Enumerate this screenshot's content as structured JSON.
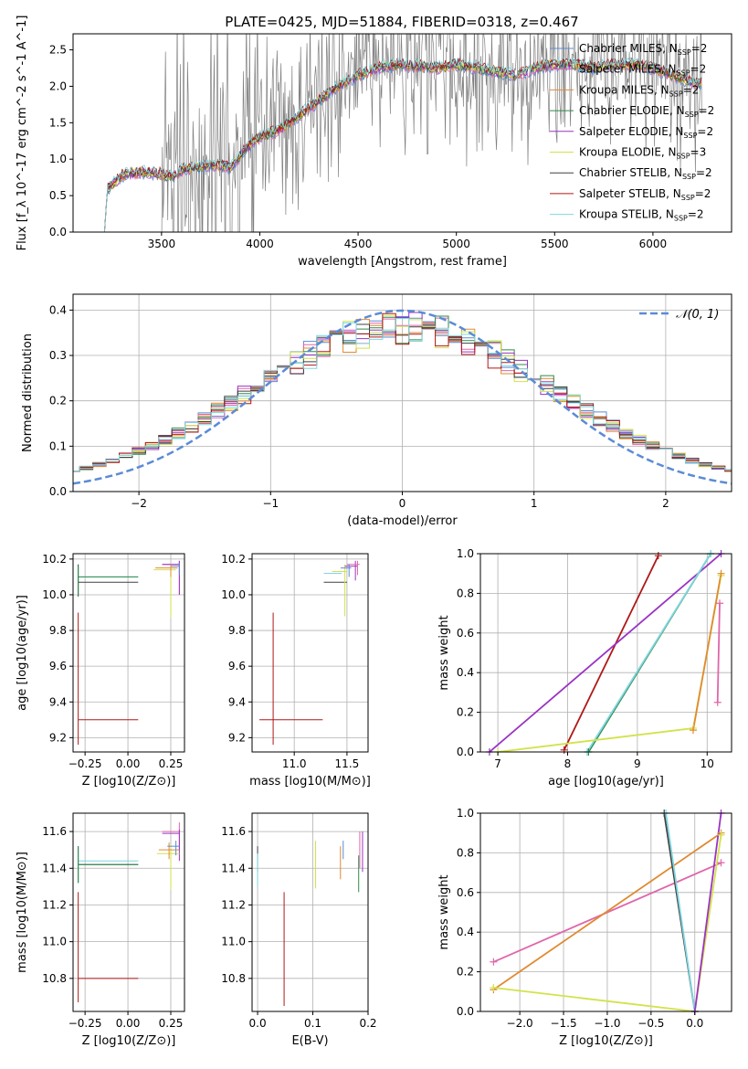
{
  "figure": {
    "title": "PLATE=0425, MJD=51884, FIBERID=0318, z=0.467"
  },
  "colors": {
    "chabrier_miles": "#5b8bd6",
    "salpeter_miles": "#e066aa",
    "kroupa_miles": "#e08a30",
    "chabrier_elodie": "#2f8a4a",
    "salpeter_elodie": "#9a33c4",
    "kroupa_elodie": "#d2e24a",
    "chabrier_stelib": "#404040",
    "salpeter_stelib": "#b01818",
    "kroupa_stelib": "#7fd6e0",
    "data_gray": "#808080",
    "normal_curve": "#5b8bd6",
    "grid": "#b0b0b0"
  },
  "chart_data": [
    {
      "id": "spectrum",
      "type": "line",
      "title": "PLATE=0425, MJD=51884, FIBERID=0318, z=0.467",
      "xlabel": "wavelength [Angstrom, rest frame]",
      "ylabel": "Flux [f_λ 10^-17 erg cm^-2 s^-1 A^-1]",
      "xlim": [
        3050,
        6400
      ],
      "ylim": [
        0,
        2.72
      ],
      "grid": false,
      "legend_position": "top-right",
      "xticks": [
        3500,
        4000,
        4500,
        5000,
        5500,
        6000
      ],
      "yticks": [
        0.0,
        0.5,
        1.0,
        1.5,
        2.0,
        2.5
      ],
      "legend": [
        {
          "label": "Chabrier MILES, N_SSP=2",
          "color_key": "chabrier_miles"
        },
        {
          "label": "Salpeter MILES, N_SSP=2",
          "color_key": "salpeter_miles"
        },
        {
          "label": "Kroupa MILES, N_SSP=2",
          "color_key": "kroupa_miles"
        },
        {
          "label": "Chabrier ELODIE, N_SSP=2",
          "color_key": "chabrier_elodie"
        },
        {
          "label": "Salpeter ELODIE, N_SSP=2",
          "color_key": "salpeter_elodie"
        },
        {
          "label": "Kroupa ELODIE, N_SSP=3",
          "color_key": "kroupa_elodie"
        },
        {
          "label": "Chabrier STELIB, N_SSP=2",
          "color_key": "chabrier_stelib"
        },
        {
          "label": "Salpeter STELIB, N_SSP=2",
          "color_key": "salpeter_stelib"
        },
        {
          "label": "Kroupa STELIB, N_SSP=2",
          "color_key": "kroupa_stelib"
        }
      ],
      "continuum": {
        "x": [
          3210,
          3225,
          3300,
          3400,
          3500,
          3550,
          3600,
          3700,
          3800,
          3850,
          3900,
          3950,
          4000,
          4100,
          4200,
          4300,
          4400,
          4500,
          4600,
          4700,
          4800,
          4900,
          5000,
          5100,
          5200,
          5300,
          5400,
          5500,
          5600,
          5700,
          5800,
          5900,
          6000,
          6100,
          6200
        ],
        "y": [
          0.0,
          0.6,
          0.78,
          0.82,
          0.8,
          0.75,
          0.85,
          0.9,
          0.92,
          0.88,
          1.05,
          1.2,
          1.3,
          1.4,
          1.6,
          1.8,
          2.0,
          2.15,
          2.25,
          2.3,
          2.28,
          2.25,
          2.3,
          2.25,
          2.2,
          2.15,
          2.25,
          2.3,
          2.3,
          2.25,
          2.3,
          2.3,
          2.25,
          2.15,
          2.05
        ]
      },
      "data_xrange": [
        3500,
        6250
      ]
    },
    {
      "id": "residuals",
      "type": "bar",
      "xlabel": "(data-model)/error",
      "ylabel": "Normed distribution",
      "xlim": [
        -2.5,
        2.5
      ],
      "ylim": [
        0,
        0.435
      ],
      "grid": true,
      "legend_position": "top-right",
      "xticks": [
        -2,
        -1,
        0,
        1,
        2
      ],
      "yticks": [
        0.0,
        0.1,
        0.2,
        0.3,
        0.4
      ],
      "legend": [
        {
          "label": "𝒩(0, 1)",
          "style": "dashed",
          "color_key": "normal_curve"
        }
      ],
      "bin_width": 0.1,
      "series_colors": [
        "chabrier_miles",
        "salpeter_miles",
        "kroupa_miles",
        "chabrier_elodie",
        "salpeter_elodie",
        "kroupa_elodie",
        "chabrier_stelib",
        "salpeter_stelib",
        "kroupa_stelib"
      ],
      "normal": {
        "mean": 0,
        "sigma": 1
      }
    },
    {
      "id": "age_vs_Z",
      "type": "scatter",
      "xlabel": "Z [log10(Z/Z⊙)]",
      "ylabel": "age [log10(age/yr)]",
      "xlim": [
        -0.32,
        0.33
      ],
      "ylim": [
        9.12,
        10.23
      ],
      "grid": true,
      "xticks": [
        -0.25,
        0.0,
        0.25
      ],
      "xtick_labels": [
        "−0.25",
        "0.00",
        "0.25"
      ],
      "yticks": [
        9.2,
        9.4,
        9.6,
        9.8,
        10.0,
        10.2
      ],
      "points": [
        {
          "color_key": "salpeter_stelib",
          "x": -0.29,
          "xerr": [
            0,
            0.35
          ],
          "y": 9.3,
          "yerr": [
            0.14,
            0.6
          ]
        },
        {
          "color_key": "kroupa_stelib",
          "x": -0.29,
          "xerr": [
            0,
            0.35
          ],
          "y": 10.1,
          "yerr": [
            0.1,
            0.07
          ]
        },
        {
          "color_key": "chabrier_stelib",
          "x": -0.29,
          "xerr": [
            0,
            0.35
          ],
          "y": 10.07,
          "yerr": [
            0.08,
            0.1
          ]
        },
        {
          "color_key": "chabrier_elodie",
          "x": -0.29,
          "xerr": [
            0,
            0.35
          ],
          "y": 10.1,
          "yerr": [
            0.1,
            0.06
          ]
        },
        {
          "color_key": "salpeter_miles",
          "x": 0.3,
          "xerr": [
            0.1,
            0.0
          ],
          "y": 10.17,
          "yerr": [
            0.17,
            0.02
          ]
        },
        {
          "color_key": "salpeter_elodie",
          "x": 0.3,
          "xerr": [
            0.1,
            0.0
          ],
          "y": 10.17,
          "yerr": [
            0.17,
            0.02
          ]
        },
        {
          "color_key": "kroupa_elodie",
          "x": 0.25,
          "xerr": [
            0.1,
            0.03
          ],
          "y": 10.14,
          "yerr": [
            0.27,
            0.03
          ]
        },
        {
          "color_key": "kroupa_miles",
          "x": 0.25,
          "xerr": [
            0.09,
            0.04
          ],
          "y": 10.15,
          "yerr": [
            0.05,
            0.02
          ]
        },
        {
          "color_key": "chabrier_miles",
          "x": 0.3,
          "xerr": [
            0.05,
            0.0
          ],
          "y": 10.16,
          "yerr": [
            0.05,
            0.02
          ]
        }
      ]
    },
    {
      "id": "age_vs_mass",
      "type": "scatter",
      "xlabel": "mass [log10(M/M⊙)]",
      "ylabel": "",
      "xlim": [
        10.6,
        11.7
      ],
      "ylim": [
        9.12,
        10.23
      ],
      "grid": true,
      "xticks": [
        11.0,
        11.5
      ],
      "yticks": [
        9.2,
        9.4,
        9.6,
        9.8,
        10.0,
        10.2
      ],
      "points": [
        {
          "color_key": "salpeter_stelib",
          "x": 10.8,
          "xerr": [
            0.13,
            0.47
          ],
          "y": 9.3,
          "yerr": [
            0.14,
            0.6
          ]
        },
        {
          "color_key": "chabrier_stelib",
          "x": 11.5,
          "xerr": [
            0.22,
            0.0
          ],
          "y": 10.07,
          "yerr": [
            0.0,
            0.0
          ]
        },
        {
          "color_key": "kroupa_stelib",
          "x": 11.45,
          "xerr": [
            0.17,
            0.0
          ],
          "y": 10.12,
          "yerr": [
            0.0,
            0.0
          ]
        },
        {
          "color_key": "kroupa_elodie",
          "x": 11.48,
          "xerr": [
            0.12,
            0.02
          ],
          "y": 10.13,
          "yerr": [
            0.25,
            0.04
          ]
        },
        {
          "color_key": "salpeter_elodie",
          "x": 11.58,
          "xerr": [
            0.1,
            0.02
          ],
          "y": 10.16,
          "yerr": [
            0.08,
            0.03
          ]
        },
        {
          "color_key": "salpeter_miles",
          "x": 11.6,
          "xerr": [
            0.1,
            0.02
          ],
          "y": 10.17,
          "yerr": [
            0.06,
            0.02
          ]
        },
        {
          "color_key": "chabrier_miles",
          "x": 11.52,
          "xerr": [
            0.08,
            0.02
          ],
          "y": 10.15,
          "yerr": [
            0.05,
            0.02
          ]
        }
      ]
    },
    {
      "id": "weight_vs_age",
      "type": "line",
      "xlabel": "age [log10(age/yr)]",
      "ylabel": "mass weight",
      "xlim": [
        6.75,
        10.35
      ],
      "ylim": [
        0,
        1
      ],
      "grid": true,
      "xticks": [
        7,
        8,
        9,
        10
      ],
      "yticks": [
        0.0,
        0.2,
        0.4,
        0.6,
        0.8,
        1.0
      ],
      "series": [
        {
          "color_key": "salpeter_stelib",
          "x": [
            7.95,
            9.3
          ],
          "y": [
            0.01,
            0.99
          ]
        },
        {
          "color_key": "salpeter_elodie",
          "x": [
            6.88,
            10.2
          ],
          "y": [
            0.0,
            1.0
          ]
        },
        {
          "color_key": "chabrier_elodie",
          "x": [
            8.3,
            10.05
          ],
          "y": [
            0.0,
            1.0
          ]
        },
        {
          "color_key": "kroupa_stelib",
          "x": [
            8.28,
            10.05
          ],
          "y": [
            0.0,
            1.0
          ]
        },
        {
          "color_key": "kroupa_elodie",
          "x": [
            7.0,
            9.8,
            10.2
          ],
          "y": [
            0.0,
            0.12,
            0.89
          ]
        },
        {
          "color_key": "salpeter_miles",
          "x": [
            10.15,
            10.18
          ],
          "y": [
            0.25,
            0.75
          ]
        },
        {
          "color_key": "kroupa_miles",
          "x": [
            9.8,
            10.2
          ],
          "y": [
            0.11,
            0.9
          ]
        }
      ]
    },
    {
      "id": "mass_vs_Z",
      "type": "scatter",
      "xlabel": "Z [log10(Z/Z⊙)]",
      "ylabel": "mass [log10(M/M⊙)]",
      "xlim": [
        -0.32,
        0.33
      ],
      "ylim": [
        10.62,
        11.7
      ],
      "grid": true,
      "xticks": [
        -0.25,
        0.0,
        0.25
      ],
      "xtick_labels": [
        "−0.25",
        "0.00",
        "0.25"
      ],
      "yticks": [
        10.8,
        11.0,
        11.2,
        11.4,
        11.6
      ],
      "points": [
        {
          "color_key": "salpeter_stelib",
          "x": -0.29,
          "xerr": [
            0,
            0.35
          ],
          "y": 10.8,
          "yerr": [
            0.13,
            0.47
          ]
        },
        {
          "color_key": "chabrier_stelib",
          "x": -0.29,
          "xerr": [
            0,
            0.35
          ],
          "y": 11.42,
          "yerr": [
            0.1,
            0.1
          ]
        },
        {
          "color_key": "kroupa_stelib",
          "x": -0.29,
          "xerr": [
            0,
            0.35
          ],
          "y": 11.44,
          "yerr": [
            0.12,
            0.06
          ]
        },
        {
          "color_key": "chabrier_elodie",
          "x": -0.29,
          "xerr": [
            0,
            0.35
          ],
          "y": 11.42,
          "yerr": [
            0.1,
            0.1
          ]
        },
        {
          "color_key": "salpeter_miles",
          "x": 0.3,
          "xerr": [
            0.1,
            0.0
          ],
          "y": 11.6,
          "yerr": [
            0.1,
            0.05
          ]
        },
        {
          "color_key": "salpeter_elodie",
          "x": 0.3,
          "xerr": [
            0.1,
            0.0
          ],
          "y": 11.59,
          "yerr": [
            0.15,
            0.02
          ]
        },
        {
          "color_key": "kroupa_elodie",
          "x": 0.25,
          "xerr": [
            0.08,
            0.05
          ],
          "y": 11.48,
          "yerr": [
            0.2,
            0.05
          ]
        },
        {
          "color_key": "kroupa_miles",
          "x": 0.24,
          "xerr": [
            0.06,
            0.06
          ],
          "y": 11.5,
          "yerr": [
            0.05,
            0.04
          ]
        },
        {
          "color_key": "chabrier_miles",
          "x": 0.28,
          "xerr": [
            0.05,
            0.02
          ],
          "y": 11.52,
          "yerr": [
            0.05,
            0.03
          ]
        }
      ]
    },
    {
      "id": "mass_vs_ebv",
      "type": "scatter",
      "xlabel": "E(B-V)",
      "ylabel": "",
      "xlim": [
        -0.01,
        0.2
      ],
      "ylim": [
        10.62,
        11.7
      ],
      "grid": true,
      "xticks": [
        0.0,
        0.1,
        0.2
      ],
      "yticks": [
        10.8,
        11.0,
        11.2,
        11.4,
        11.6
      ],
      "points": [
        {
          "color_key": "salpeter_stelib",
          "x": 0.048,
          "y": 10.95,
          "yerr": [
            0.3,
            0.32
          ]
        },
        {
          "color_key": "chabrier_stelib",
          "x": 0.0,
          "y": 11.45,
          "yerr": [
            0.07,
            0.07
          ]
        },
        {
          "color_key": "kroupa_stelib",
          "x": 0.0,
          "y": 11.42,
          "yerr": [
            0.12,
            0.06
          ]
        },
        {
          "color_key": "kroupa_elodie",
          "x": 0.105,
          "y": 11.42,
          "yerr": [
            0.13,
            0.13
          ]
        },
        {
          "color_key": "kroupa_miles",
          "x": 0.15,
          "y": 11.42,
          "yerr": [
            0.08,
            0.1
          ]
        },
        {
          "color_key": "chabrier_miles",
          "x": 0.155,
          "y": 11.5,
          "yerr": [
            0.05,
            0.05
          ]
        },
        {
          "color_key": "chabrier_elodie",
          "x": 0.183,
          "y": 11.35,
          "yerr": [
            0.08,
            0.12
          ]
        },
        {
          "color_key": "salpeter_elodie",
          "x": 0.19,
          "y": 11.48,
          "yerr": [
            0.1,
            0.12
          ]
        },
        {
          "color_key": "salpeter_miles",
          "x": 0.185,
          "y": 11.5,
          "yerr": [
            0.1,
            0.1
          ]
        }
      ]
    },
    {
      "id": "weight_vs_Z",
      "type": "line",
      "xlabel": "Z [log10(Z/Z⊙)]",
      "ylabel": "mass weight",
      "xlim": [
        -2.45,
        0.42
      ],
      "ylim": [
        0,
        1
      ],
      "grid": true,
      "xticks": [
        -2.0,
        -1.5,
        -1.0,
        -0.5,
        0.0
      ],
      "xtick_labels": [
        "−2.0",
        "−1.5",
        "−1.0",
        "−0.5",
        "0.0"
      ],
      "yticks": [
        0.0,
        0.2,
        0.4,
        0.6,
        0.8,
        1.0
      ],
      "series": [
        {
          "color_key": "salpeter_miles",
          "x": [
            -2.3,
            0.3
          ],
          "y": [
            0.25,
            0.75
          ]
        },
        {
          "color_key": "kroupa_miles",
          "x": [
            -2.3,
            0.3
          ],
          "y": [
            0.11,
            0.9
          ]
        },
        {
          "color_key": "kroupa_elodie",
          "x": [
            -2.3,
            0.0,
            0.3
          ],
          "y": [
            0.12,
            0.0,
            0.89
          ]
        },
        {
          "color_key": "chabrier_stelib",
          "x": [
            -0.35,
            0.0
          ],
          "y": [
            1.0,
            0.0
          ]
        },
        {
          "color_key": "kroupa_stelib",
          "x": [
            -0.33,
            0.0
          ],
          "y": [
            1.0,
            0.0
          ]
        },
        {
          "color_key": "salpeter_elodie",
          "x": [
            0.0,
            0.3
          ],
          "y": [
            0.0,
            1.0
          ]
        }
      ]
    }
  ]
}
